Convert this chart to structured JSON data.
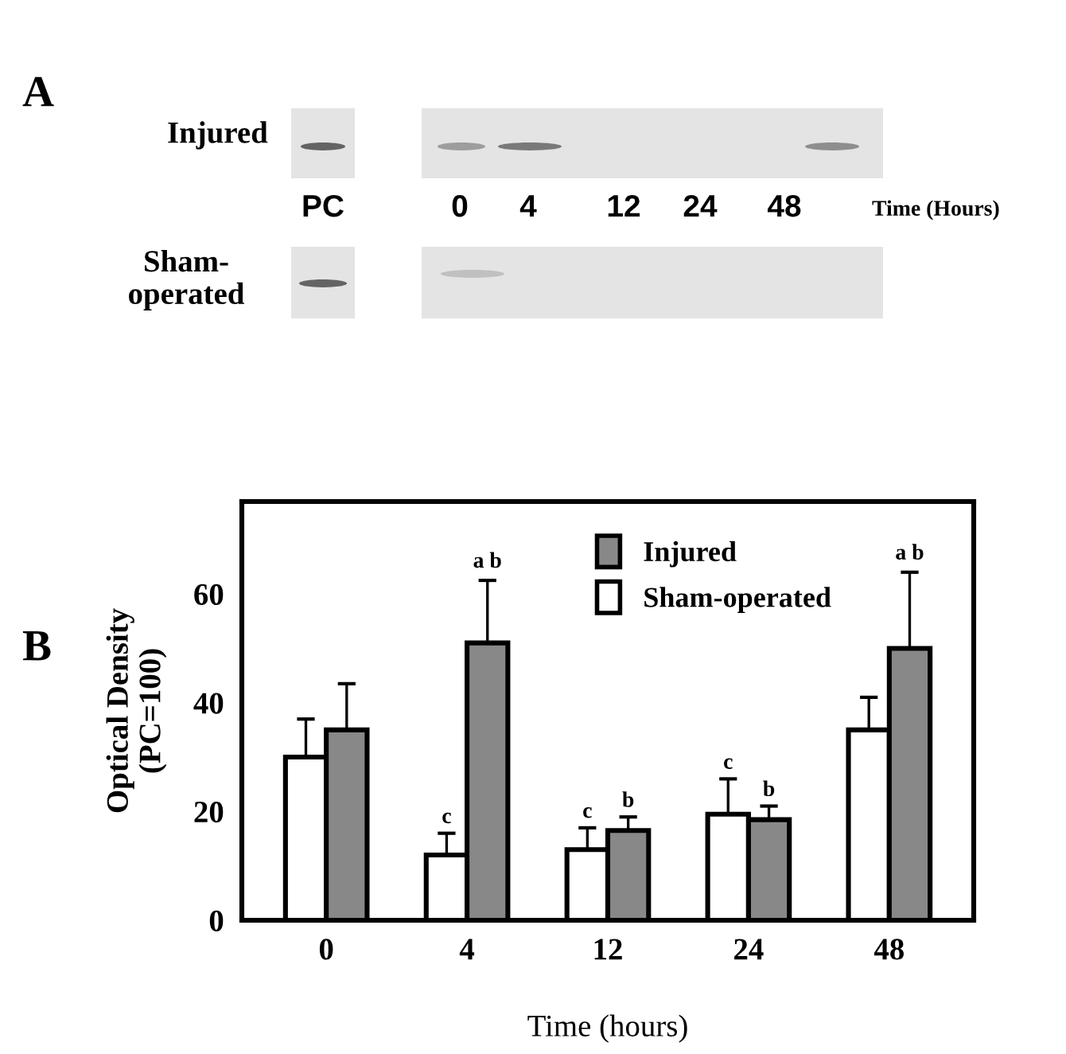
{
  "chart_data": [
    {
      "type": "other",
      "annotations": [
        "A",
        "Injured",
        "PC",
        "0",
        "4",
        "12",
        "24",
        "48",
        "Time (Hours)",
        "Sham-\noperated"
      ]
    },
    {
      "type": "bar",
      "ylabel": "Optical Density\n(PC=100)",
      "xlabel": "Time (hours)",
      "categories": [
        "0",
        "4",
        "12",
        "24",
        "48"
      ],
      "series": [
        {
          "name": "Sham-operated",
          "color": "#ffffff",
          "values": [
            30,
            12,
            13,
            19.5,
            35
          ],
          "errors": [
            [
              30,
              37
            ],
            [
              12,
              16
            ],
            [
              13,
              17
            ],
            [
              19.5,
              26
            ],
            [
              35,
              41
            ]
          ]
        },
        {
          "name": "Injured",
          "color": "#888888",
          "values": [
            35,
            51,
            16.5,
            18.5,
            50
          ],
          "errors": [
            [
              35,
              43.5
            ],
            [
              51,
              62.5
            ],
            [
              16.5,
              19
            ],
            [
              18.5,
              21
            ],
            [
              50,
              64
            ]
          ]
        }
      ],
      "ylim": [
        0,
        77
      ],
      "yticks": [
        0,
        20,
        40,
        60
      ],
      "legend": "top",
      "grid": false,
      "annotations": [
        "B",
        "a b",
        "c",
        "c",
        "b",
        "c",
        "b",
        "a b"
      ]
    }
  ]
}
